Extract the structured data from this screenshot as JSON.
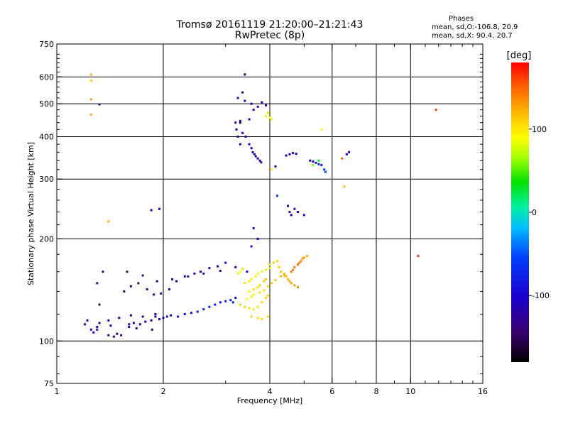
{
  "chart_data": {
    "type": "scatter",
    "title": "Tromsø 20161119 21:20:00–21:21:43",
    "subtitle": "RwPretec (8p)",
    "xlabel": "Frequency [MHz]",
    "ylabel": "Stationary phase Virtual Height [km]",
    "x_scale": "log",
    "y_scale": "log",
    "xlim": [
      1,
      16
    ],
    "ylim": [
      75,
      750
    ],
    "x_ticks": [
      1,
      2,
      4,
      6,
      8,
      10,
      16
    ],
    "y_ticks": [
      75,
      100,
      200,
      300,
      400,
      500,
      600,
      750
    ],
    "x_grid_major": [
      2,
      4,
      6,
      8,
      10
    ],
    "y_grid_major": [
      100,
      200,
      300,
      400,
      500,
      600
    ],
    "grid": true,
    "phases_header": "Phases",
    "phases_line_o": "mean, sd,O:-106.8, 20.9",
    "phases_line_x": "mean, sd,X:  90.4, 20.7",
    "colorbar": {
      "label": "[deg]",
      "range": [
        -180,
        180
      ],
      "ticks": [
        100,
        0,
        -100
      ],
      "colormap": "rainbow"
    },
    "series": [
      {
        "x": [
          1.25,
          1.27,
          1.3,
          1.32,
          1.3,
          1.4,
          1.45,
          1.52,
          1.48,
          1.42,
          1.6,
          1.65,
          1.72,
          1.78,
          1.85,
          1.9,
          1.95,
          2.0,
          2.05,
          2.1,
          2.2,
          2.3,
          2.4,
          2.5,
          2.6,
          2.7,
          2.8,
          2.9,
          3.0,
          3.1,
          3.15,
          3.2,
          1.55,
          1.62,
          1.7,
          1.8,
          1.88,
          1.97,
          2.08,
          2.18,
          2.3,
          2.45,
          2.55,
          2.7,
          2.85,
          3.0,
          1.58,
          1.75,
          1.92,
          2.12,
          2.35,
          2.6,
          2.9,
          3.2,
          3.35,
          3.45,
          1.4,
          1.5,
          1.62,
          1.75,
          1.9,
          1.3,
          1.2,
          1.22,
          1.6,
          1.68,
          1.86,
          1.35,
          1.32,
          3.3,
          3.5,
          3.6,
          3.7,
          3.25,
          3.4,
          3.55,
          3.8,
          3.9,
          3.35,
          3.42,
          3.5,
          3.55,
          3.58,
          3.62,
          3.65,
          3.7,
          3.75,
          3.78,
          3.2,
          3.22,
          3.25,
          3.3,
          3.3,
          3.35,
          3.4,
          4.5,
          4.55,
          4.6,
          4.7,
          4.8,
          5.0,
          4.45,
          4.55,
          4.65,
          4.75,
          5.2,
          5.3,
          5.4,
          5.5,
          5.6,
          5.7,
          5.75,
          6.6,
          6.7,
          3.6,
          3.7,
          3.55,
          1.32,
          1.85,
          1.95,
          4.15,
          4.2
        ],
        "y": [
          108,
          106,
          110,
          113,
          108,
          104,
          103,
          104,
          105,
          111,
          112,
          113,
          112,
          114,
          115,
          118,
          116,
          117,
          118,
          119,
          118,
          120,
          121,
          122,
          124,
          126,
          128,
          130,
          131,
          132,
          130,
          134,
          140,
          145,
          148,
          142,
          137,
          138,
          142,
          150,
          155,
          158,
          160,
          164,
          166,
          170,
          160,
          156,
          150,
          152,
          155,
          158,
          161,
          165,
          163,
          160,
          115,
          117,
          119,
          118,
          120,
          148,
          112,
          115,
          110,
          109,
          108,
          160,
          128,
          445,
          450,
          480,
          490,
          520,
          510,
          500,
          505,
          495,
          410,
          400,
          380,
          370,
          360,
          355,
          350,
          345,
          340,
          336,
          440,
          420,
          400,
          380,
          440,
          540,
          610,
          250,
          240,
          235,
          245,
          240,
          235,
          352,
          355,
          358,
          356,
          340,
          338,
          335,
          332,
          330,
          320,
          315,
          355,
          360,
          215,
          200,
          190,
          498,
          243,
          245,
          327,
          268
        ],
        "phase": [
          -110,
          -115,
          -120,
          -125,
          -118,
          -130,
          -135,
          -128,
          -140,
          -122,
          -105,
          -110,
          -100,
          -95,
          -108,
          -112,
          -100,
          -98,
          -92,
          -95,
          -90,
          -85,
          -88,
          -82,
          -80,
          -78,
          -85,
          -76,
          -72,
          -80,
          -78,
          -90,
          -150,
          -145,
          -140,
          -135,
          -130,
          -128,
          -125,
          -120,
          -118,
          -115,
          -110,
          -105,
          -100,
          -95,
          -140,
          -138,
          -135,
          -130,
          -125,
          -120,
          -115,
          -110,
          -100,
          -95,
          -125,
          -130,
          -135,
          -140,
          -132,
          -128,
          -90,
          -95,
          -128,
          -132,
          -130,
          -135,
          -150,
          -100,
          -110,
          -105,
          -95,
          -120,
          -115,
          -108,
          -100,
          -102,
          -95,
          -98,
          -100,
          -105,
          -108,
          -112,
          -110,
          -114,
          -118,
          -120,
          -110,
          -112,
          -115,
          -118,
          -150,
          -150,
          -150,
          -110,
          -115,
          -105,
          -100,
          -98,
          -102,
          -110,
          -108,
          -112,
          -105,
          -95,
          -100,
          -90,
          -85,
          -80,
          -60,
          -55,
          -100,
          -105,
          -110,
          -95,
          -90,
          -140,
          -100,
          -102,
          -120,
          -60
        ]
      },
      {
        "x": [
          3.3,
          3.4,
          3.5,
          3.6,
          3.7,
          3.8,
          3.9,
          3.95,
          3.5,
          3.6,
          3.7,
          3.75,
          3.85,
          3.9,
          3.4,
          3.5,
          3.55,
          3.65,
          3.7,
          3.8,
          3.9,
          4.0,
          4.0,
          4.1,
          4.2,
          4.25,
          4.3,
          4.4,
          4.45,
          4.5,
          4.55,
          4.6,
          4.7,
          4.8,
          3.45,
          3.55,
          3.6,
          3.75,
          3.85,
          3.95,
          4.05,
          4.15,
          4.3,
          4.4,
          3.55,
          3.7,
          3.8,
          3.95,
          1.25,
          1.25,
          1.25,
          1.25,
          6.4,
          6.5,
          11.8,
          10.5,
          3.9,
          3.95,
          4.0,
          4.05,
          4.05,
          5.3,
          5.6,
          5.5,
          1.4,
          3.35,
          3.3,
          3.25,
          4.6,
          4.65,
          4.7,
          4.8,
          4.85,
          4.9,
          4.95,
          5.0,
          5.1
        ],
        "y": [
          128,
          126,
          125,
          124,
          126,
          130,
          134,
          136,
          140,
          142,
          144,
          146,
          150,
          152,
          148,
          150,
          152,
          155,
          158,
          160,
          162,
          164,
          168,
          170,
          172,
          165,
          160,
          158,
          155,
          152,
          150,
          148,
          146,
          144,
          133,
          135,
          137,
          139,
          141,
          145,
          148,
          151,
          155,
          156,
          118,
          117,
          116,
          118,
          610,
          585,
          515,
          465,
          345,
          285,
          480,
          178,
          460,
          470,
          455,
          450,
          320,
          330,
          420,
          340,
          225,
          163,
          160,
          158,
          160,
          162,
          165,
          168,
          170,
          172,
          175,
          176,
          178
        ],
        "phase": [
          110,
          105,
          102,
          98,
          100,
          105,
          108,
          110,
          95,
          100,
          104,
          108,
          112,
          115,
          100,
          98,
          96,
          94,
          92,
          95,
          98,
          102,
          105,
          108,
          110,
          112,
          115,
          118,
          120,
          122,
          125,
          128,
          130,
          132,
          90,
          95,
          98,
          100,
          104,
          108,
          112,
          115,
          118,
          120,
          110,
          108,
          106,
          104,
          120,
          110,
          130,
          125,
          150,
          120,
          160,
          165,
          80,
          70,
          90,
          85,
          95,
          60,
          90,
          30,
          120,
          85,
          90,
          80,
          140,
          145,
          148,
          142,
          138,
          135,
          132,
          130,
          128
        ]
      }
    ]
  }
}
